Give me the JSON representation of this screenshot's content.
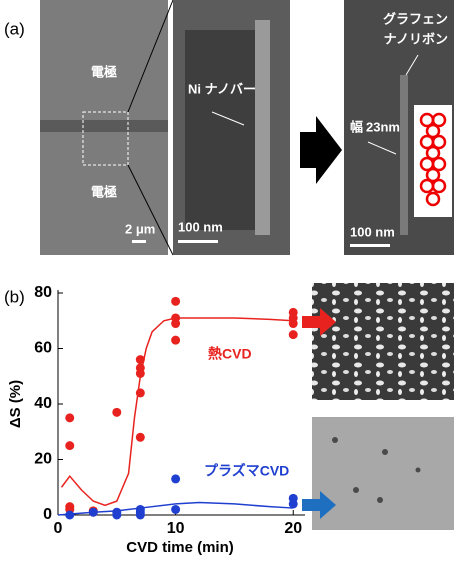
{
  "panel_a": {
    "label": "(a)",
    "electrode_top": "電極",
    "electrode_bottom": "電極",
    "scale_1": "2 μm",
    "nanobar": "Ni ナノバー",
    "scale_2": "100 nm",
    "ribbon_line1": "グラフェン",
    "ribbon_line2": "ナノリボン",
    "width_label": "幅",
    "width_value": "23nm",
    "scale_3": "100 nm"
  },
  "chart_data": {
    "type": "scatter",
    "panel_label": "(b)",
    "x_label": "CVD time (min)",
    "y_label": "ΔS (%)",
    "xlim": [
      0,
      21
    ],
    "ylim": [
      0,
      80
    ],
    "xticks": [
      0,
      10,
      20
    ],
    "yticks": [
      0,
      20,
      40,
      60,
      80
    ],
    "annotations": [
      {
        "text": "熱CVD",
        "color": "#e8231f"
      },
      {
        "text": "プラズマCVD",
        "color": "#1f3fd0"
      }
    ],
    "series": [
      {
        "color": "#e8231f",
        "mode": "markers",
        "x": [
          1,
          1,
          1,
          1,
          3,
          3,
          5,
          7,
          7,
          7,
          7,
          7,
          10,
          10,
          10,
          10,
          20,
          20,
          20,
          20
        ],
        "values": [
          35,
          25,
          3,
          2,
          1.5,
          1,
          37,
          56,
          53,
          51,
          44,
          28,
          77,
          71,
          69,
          63,
          73,
          71,
          69,
          65
        ]
      },
      {
        "color": "#1f3fd0",
        "mode": "markers",
        "x": [
          1,
          3,
          5,
          5,
          7,
          7,
          7,
          10,
          10,
          20,
          20
        ],
        "values": [
          0,
          1,
          1,
          0,
          2,
          1,
          0,
          13,
          2,
          6,
          4
        ]
      },
      {
        "color": "#e8231f",
        "mode": "line",
        "x": [
          0.3,
          1,
          2,
          3,
          4,
          5,
          6,
          6.5,
          7,
          7.5,
          8,
          9,
          10,
          12,
          15,
          18,
          20
        ],
        "values": [
          10,
          14,
          9,
          5,
          3.5,
          5,
          15,
          35,
          50,
          60,
          66,
          70,
          71,
          71,
          71,
          70.5,
          70
        ]
      },
      {
        "color": "#1f3fd0",
        "mode": "line",
        "x": [
          0,
          3,
          5,
          7,
          10,
          12,
          15,
          18,
          20
        ],
        "values": [
          0,
          1,
          1.5,
          2.5,
          4,
          4.5,
          4,
          3,
          2.5
        ]
      }
    ]
  }
}
